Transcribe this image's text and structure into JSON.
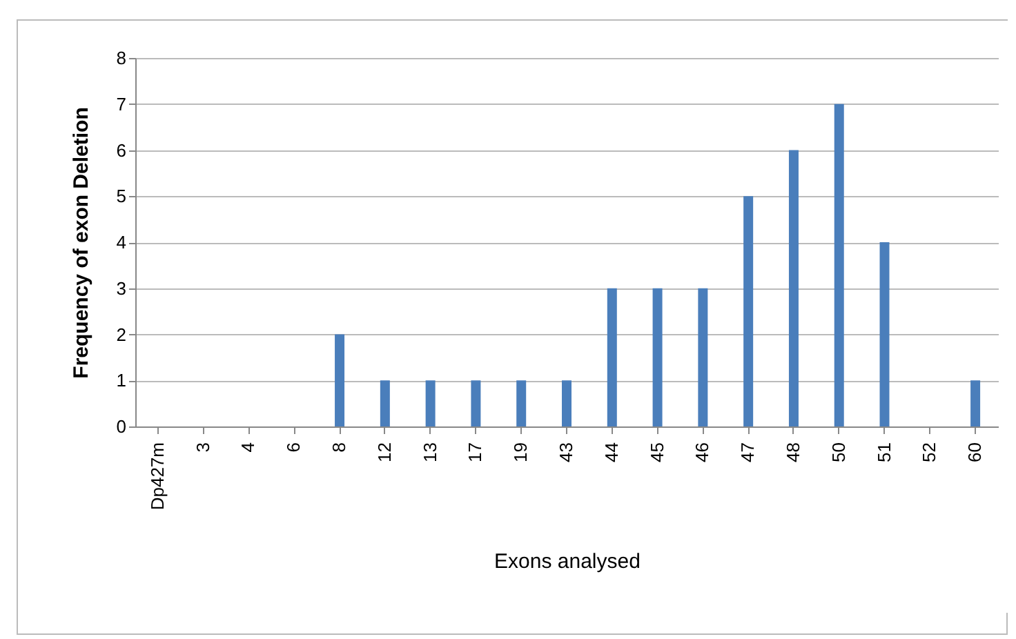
{
  "chart_data": {
    "type": "bar",
    "xlabel": "Exons analysed",
    "ylabel": "Frequency of exon Deletion",
    "categories": [
      "Dp427m",
      "3",
      "4",
      "6",
      "8",
      "12",
      "13",
      "17",
      "19",
      "43",
      "44",
      "45",
      "46",
      "47",
      "48",
      "50",
      "51",
      "52",
      "60"
    ],
    "values": [
      0,
      0,
      0,
      0,
      2,
      1,
      1,
      1,
      1,
      1,
      3,
      3,
      3,
      5,
      6,
      7,
      4,
      0,
      1
    ],
    "color": "#4a7ebb",
    "ylim": [
      0,
      8
    ],
    "yticks": [
      0,
      1,
      2,
      3,
      4,
      5,
      6,
      7,
      8
    ],
    "grid": "y"
  }
}
